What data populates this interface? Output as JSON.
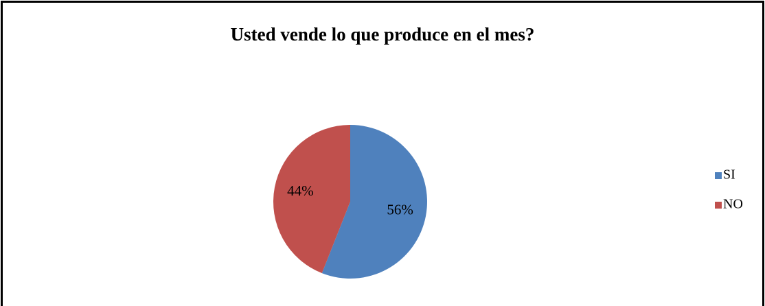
{
  "chart_data": {
    "type": "pie",
    "title": "Usted vende lo que produce en el mes?",
    "categories": [
      "SI",
      "NO"
    ],
    "values": [
      56,
      44
    ],
    "value_labels": [
      "56%",
      "44%"
    ],
    "colors": [
      "#4f81bd",
      "#c0504d"
    ],
    "legend": "right"
  }
}
